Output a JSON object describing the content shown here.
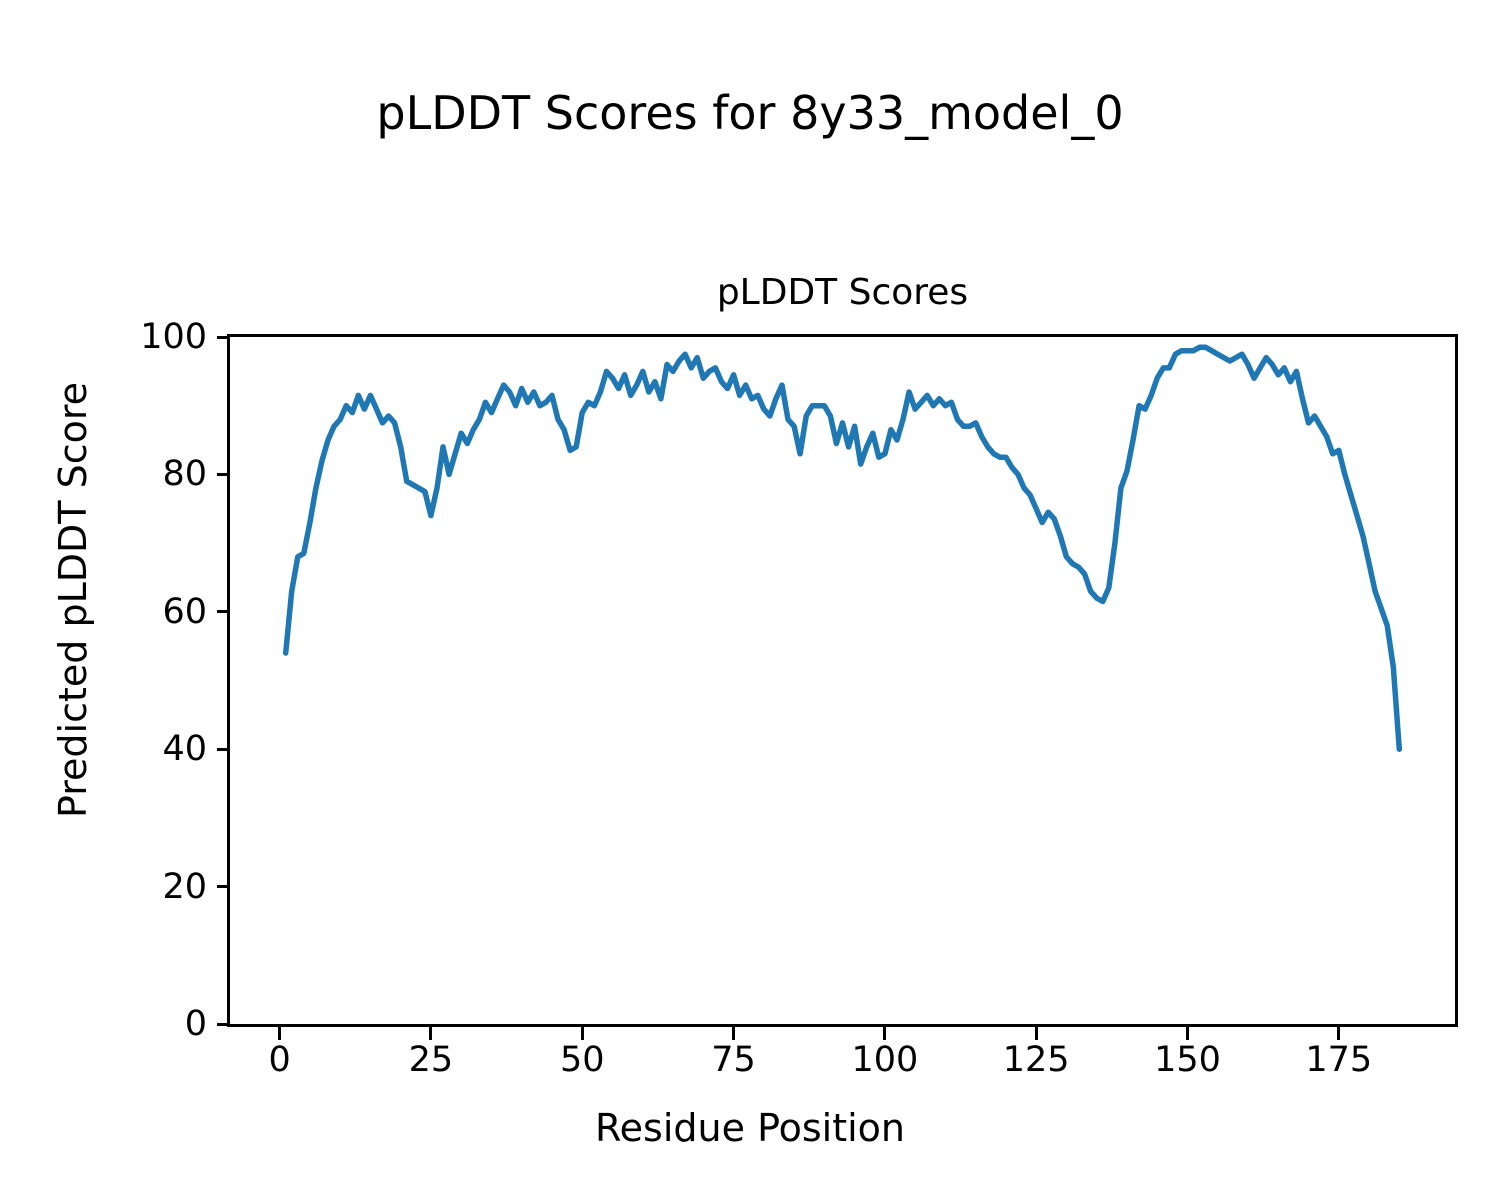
{
  "figure": {
    "suptitle": "pLDDT Scores for 8y33_model_0"
  },
  "chart_data": {
    "type": "line",
    "title": "pLDDT Scores",
    "xlabel": "Residue Position",
    "ylabel": "Predicted pLDDT Score",
    "line_color": "#1f77b4",
    "line_width": 5.5,
    "grid": false,
    "legend": null,
    "xlim": [
      -8.2,
      194.2
    ],
    "ylim": [
      0,
      100
    ],
    "xticks": [
      0,
      25,
      50,
      75,
      100,
      125,
      150,
      175
    ],
    "yticks": [
      0,
      20,
      40,
      60,
      80,
      100
    ],
    "x_start": 1,
    "x_step": 1,
    "values": [
      54,
      63,
      68,
      68.5,
      73,
      78,
      82,
      85,
      87,
      88,
      90,
      89,
      91.5,
      89.5,
      91.5,
      89.5,
      87.5,
      88.5,
      87.5,
      84,
      79,
      78.5,
      78,
      77.5,
      74,
      78,
      84,
      80,
      83,
      86,
      84.5,
      86.5,
      88,
      90.5,
      89,
      91,
      93,
      92,
      90,
      92.5,
      90.5,
      92,
      90,
      90.5,
      91.5,
      88,
      86.5,
      83.5,
      84,
      89,
      90.5,
      90,
      92,
      95,
      94,
      92.5,
      94.5,
      91.5,
      93,
      95,
      92,
      93.5,
      91,
      96,
      95,
      96.5,
      97.5,
      95.5,
      97,
      94,
      95,
      95.5,
      93.5,
      92.5,
      94.5,
      91.5,
      93,
      91,
      91.5,
      89.5,
      88.5,
      91,
      93,
      88,
      87,
      83,
      88.5,
      90,
      90,
      90,
      88.5,
      84.5,
      87.5,
      84,
      87,
      81.5,
      84,
      86,
      82.5,
      83,
      86.5,
      85,
      88,
      92,
      89.5,
      90.5,
      91.5,
      90,
      91,
      90,
      90.5,
      88,
      87,
      87,
      87.5,
      85.5,
      84,
      83,
      82.5,
      82.5,
      81,
      80,
      78,
      77,
      75,
      73,
      74.5,
      73.5,
      71,
      68,
      67,
      66.5,
      65.5,
      63,
      62,
      61.5,
      63.5,
      70,
      78,
      80.5,
      85,
      90,
      89.5,
      91.5,
      94,
      95.5,
      95.5,
      97.5,
      98,
      98,
      98,
      98.5,
      98.5,
      98,
      97.5,
      97,
      96.5,
      97,
      97.5,
      96,
      94,
      95.5,
      97,
      96,
      94.5,
      95.5,
      93.5,
      95,
      91,
      87.5,
      88.5,
      87,
      85.5,
      83,
      83.5,
      80,
      77,
      74,
      71,
      67,
      63,
      60.5,
      58,
      52,
      40
    ]
  }
}
